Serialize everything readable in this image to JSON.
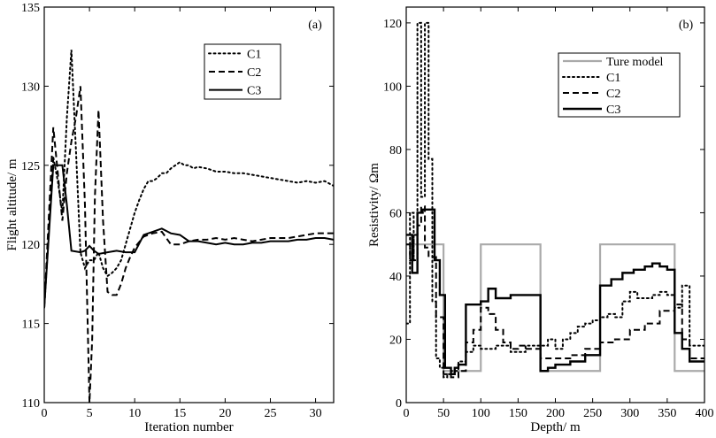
{
  "chart_data": [
    {
      "type": "line",
      "panel_label": "(a)",
      "title": "",
      "xlabel": "Iteration number",
      "ylabel": "Flight altitude/ m",
      "xlim": [
        0,
        32
      ],
      "ylim": [
        110,
        135
      ],
      "xticks": [
        0,
        5,
        10,
        15,
        20,
        25,
        30
      ],
      "yticks": [
        110,
        115,
        120,
        125,
        130,
        135
      ],
      "legend_position": "top-right",
      "series": [
        {
          "name": "C1",
          "style": "dotted",
          "x": [
            0,
            1,
            1.5,
            2,
            2.5,
            3,
            3.5,
            4,
            4.5,
            5,
            5.5,
            6,
            6.5,
            7,
            7.5,
            8,
            8.5,
            9,
            9.5,
            10,
            10.5,
            11,
            11.5,
            12,
            12.5,
            13,
            13.5,
            14,
            14.5,
            15,
            15.5,
            16,
            16.5,
            17,
            18,
            19,
            20,
            21,
            22,
            23,
            24,
            25,
            26,
            27,
            28,
            29,
            30,
            31,
            32
          ],
          "y": [
            116,
            125.5,
            124,
            122,
            128,
            132.3,
            126,
            119.5,
            118.5,
            119,
            119,
            119.5,
            118.5,
            118,
            118.2,
            118.5,
            119,
            120,
            121,
            122,
            122.8,
            123.5,
            124,
            124,
            124.2,
            124.5,
            124.5,
            124.8,
            125,
            125.2,
            125,
            125,
            124.8,
            124.9,
            124.8,
            124.6,
            124.6,
            124.5,
            124.5,
            124.4,
            124.3,
            124.2,
            124.1,
            124,
            123.9,
            124,
            123.9,
            124,
            123.7
          ]
        },
        {
          "name": "C2",
          "style": "dashed",
          "x": [
            0,
            1,
            1.5,
            2,
            2.5,
            3,
            3.5,
            4,
            4.5,
            5,
            5.3,
            5.6,
            6,
            6.5,
            7,
            7.5,
            8,
            8.5,
            9,
            9.5,
            10,
            11,
            12,
            13,
            13.5,
            14,
            15,
            16,
            17,
            18,
            19,
            20,
            21,
            22,
            23,
            24,
            25,
            26,
            27,
            28,
            29,
            30,
            31,
            32
          ],
          "y": [
            116,
            127.4,
            124.5,
            121.5,
            124.5,
            126.5,
            128,
            130,
            122.5,
            110,
            114,
            123,
            128.5,
            121.5,
            117,
            116.8,
            116.8,
            117.5,
            118.5,
            119.2,
            119.8,
            120.5,
            120.7,
            120.8,
            120.4,
            120,
            120,
            120.2,
            120.3,
            120.3,
            120.4,
            120.3,
            120.4,
            120.3,
            120.2,
            120.3,
            120.4,
            120.4,
            120.4,
            120.5,
            120.6,
            120.7,
            120.7,
            120.7
          ]
        },
        {
          "name": "C3",
          "style": "solid",
          "x": [
            0,
            1,
            2,
            2.5,
            3,
            4,
            4.5,
            5,
            5.5,
            6,
            7,
            8,
            9,
            10,
            11,
            12,
            13,
            14,
            15,
            16,
            17,
            18,
            19,
            20,
            21,
            22,
            23,
            24,
            25,
            26,
            27,
            28,
            29,
            30,
            31,
            32
          ],
          "y": [
            116,
            125,
            125,
            122.5,
            119.6,
            119.5,
            119.6,
            119.9,
            119.6,
            119.4,
            119.5,
            119.6,
            119.5,
            119.5,
            120.6,
            120.8,
            121,
            120.7,
            120.6,
            120.2,
            120.2,
            120.1,
            120,
            120.1,
            120,
            120,
            120.1,
            120.1,
            120.2,
            120.2,
            120.2,
            120.3,
            120.3,
            120.4,
            120.4,
            120.3
          ]
        }
      ],
      "legend": [
        "C1",
        "C2",
        "C3"
      ]
    },
    {
      "type": "line",
      "panel_label": "(b)",
      "title": "",
      "xlabel": "Depth/ m",
      "ylabel": "Resistivity/ Ωm",
      "xlim": [
        0,
        400
      ],
      "ylim": [
        0,
        125
      ],
      "xticks": [
        0,
        50,
        100,
        150,
        200,
        250,
        300,
        350,
        400
      ],
      "yticks": [
        0,
        20,
        40,
        60,
        80,
        100,
        120
      ],
      "legend_position": "top-right",
      "series": [
        {
          "name": "Ture model",
          "style": "solid-gray",
          "x": [
            0,
            50,
            50,
            100,
            100,
            180,
            180,
            260,
            260,
            360,
            360,
            400
          ],
          "y": [
            50,
            50,
            10,
            10,
            50,
            50,
            10,
            10,
            50,
            50,
            10,
            10
          ]
        },
        {
          "name": "C1",
          "style": "dotted",
          "x": [
            0,
            5,
            5,
            10,
            10,
            15,
            15,
            20,
            20,
            25,
            25,
            30,
            30,
            35,
            35,
            40,
            40,
            45,
            45,
            50,
            50,
            55,
            55,
            60,
            60,
            70,
            70,
            80,
            80,
            90,
            90,
            100,
            100,
            120,
            120,
            140,
            140,
            160,
            160,
            180,
            180,
            190,
            190,
            200,
            200,
            210,
            210,
            220,
            220,
            230,
            230,
            240,
            240,
            250,
            250,
            260,
            260,
            270,
            270,
            280,
            280,
            290,
            290,
            300,
            300,
            310,
            310,
            320,
            320,
            330,
            330,
            340,
            340,
            350,
            350,
            360,
            360,
            370,
            370,
            380,
            380,
            400
          ],
          "y": [
            25,
            25,
            60,
            60,
            45,
            45,
            120,
            120,
            65,
            65,
            120,
            120,
            77,
            77,
            32,
            32,
            14,
            14,
            11,
            11,
            8,
            8,
            9,
            9,
            10,
            10,
            13,
            13,
            16,
            16,
            18,
            18,
            17,
            17,
            18,
            18,
            16,
            16,
            18,
            18,
            18,
            18,
            20,
            20,
            17,
            17,
            20,
            20,
            22,
            22,
            24,
            24,
            25,
            25,
            26,
            26,
            27,
            27,
            28,
            28,
            27,
            27,
            32,
            32,
            35,
            35,
            33,
            33,
            33,
            33,
            34,
            34,
            35,
            35,
            34,
            34,
            30,
            30,
            37,
            37,
            18,
            18
          ]
        },
        {
          "name": "C2",
          "style": "dashed",
          "x": [
            0,
            5,
            5,
            10,
            10,
            15,
            15,
            20,
            20,
            25,
            25,
            30,
            30,
            40,
            40,
            50,
            50,
            60,
            60,
            70,
            70,
            80,
            80,
            90,
            90,
            100,
            100,
            110,
            110,
            120,
            120,
            130,
            130,
            140,
            140,
            150,
            150,
            160,
            160,
            180,
            180,
            200,
            200,
            220,
            220,
            240,
            240,
            260,
            260,
            280,
            280,
            300,
            300,
            320,
            320,
            340,
            340,
            360,
            360,
            370,
            370,
            380,
            380,
            400
          ],
          "y": [
            50,
            50,
            45,
            45,
            53,
            53,
            56,
            56,
            62,
            62,
            49,
            49,
            46,
            46,
            27,
            27,
            9,
            9,
            8,
            8,
            10,
            10,
            19,
            19,
            23,
            23,
            30,
            30,
            28,
            28,
            23,
            23,
            19,
            19,
            17,
            17,
            18,
            18,
            17,
            17,
            14,
            14,
            14,
            14,
            15,
            15,
            17,
            17,
            19,
            19,
            20,
            20,
            23,
            23,
            25,
            25,
            29,
            29,
            31,
            31,
            20,
            20,
            14,
            14
          ]
        },
        {
          "name": "C3",
          "style": "solid-thick",
          "x": [
            0,
            8,
            8,
            15,
            15,
            22,
            22,
            38,
            38,
            45,
            45,
            52,
            52,
            60,
            60,
            65,
            65,
            70,
            70,
            80,
            80,
            100,
            100,
            110,
            110,
            120,
            120,
            130,
            130,
            140,
            140,
            160,
            160,
            180,
            180,
            190,
            190,
            200,
            200,
            220,
            220,
            240,
            240,
            260,
            260,
            275,
            275,
            290,
            290,
            305,
            305,
            320,
            320,
            330,
            330,
            340,
            340,
            350,
            350,
            360,
            360,
            370,
            370,
            380,
            380,
            400
          ],
          "y": [
            53,
            53,
            41,
            41,
            60,
            60,
            61,
            61,
            45,
            45,
            34,
            34,
            11,
            11,
            9,
            9,
            11,
            11,
            12,
            12,
            31,
            31,
            32,
            32,
            36,
            36,
            33,
            33,
            33,
            33,
            34,
            34,
            34,
            34,
            10,
            10,
            11,
            11,
            12,
            12,
            13,
            13,
            15,
            15,
            37,
            37,
            39,
            39,
            41,
            41,
            42,
            42,
            43,
            43,
            44,
            44,
            43,
            43,
            42,
            42,
            22,
            22,
            17,
            17,
            13,
            13
          ]
        }
      ],
      "legend": [
        "Ture model",
        "C1",
        "C2",
        "C3"
      ]
    }
  ]
}
